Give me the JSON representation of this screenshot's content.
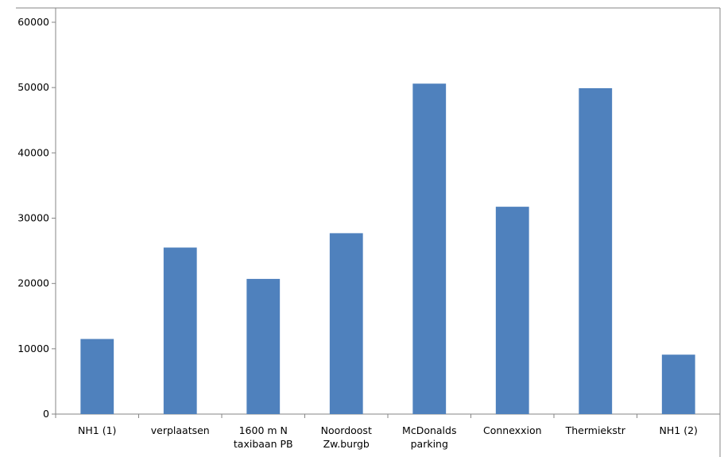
{
  "chart_data": {
    "type": "bar",
    "categories": [
      "NH1 (1)",
      "verplaatsen",
      "1600 m N\ntaxibaan PB",
      "Noordoost\nZw.burgb",
      "McDonalds\nparking",
      "Connexxion",
      "Thermiekstr",
      "NH1 (2)"
    ],
    "values": [
      11500,
      25500,
      20700,
      27700,
      50600,
      31750,
      49900,
      9100
    ],
    "color": "#4f81bd",
    "ylim": [
      0,
      60000
    ],
    "yticks": [
      0,
      10000,
      20000,
      30000,
      40000,
      50000,
      60000
    ],
    "grid": false
  }
}
